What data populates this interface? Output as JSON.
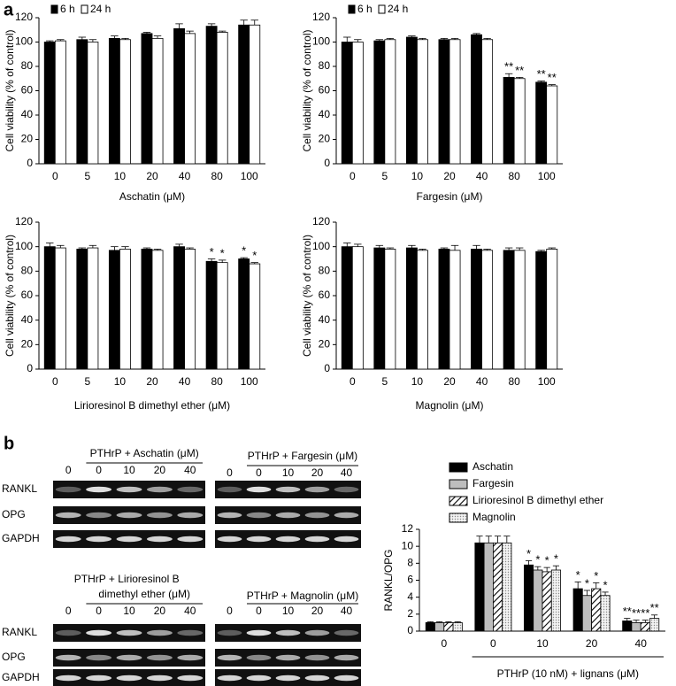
{
  "panels": [
    "a",
    "b"
  ],
  "chart_data": [
    {
      "type": "bar",
      "ylabel": "Cell viability (% of control)",
      "xlabel": "Aschatin (μM)",
      "categories": [
        "0",
        "5",
        "10",
        "20",
        "40",
        "80",
        "100"
      ],
      "ylim": [
        0,
        120
      ],
      "yticks": [
        0,
        20,
        40,
        60,
        80,
        100,
        120
      ],
      "legend": "upper left",
      "series": [
        {
          "name": "6 h",
          "color": "#000000",
          "values": [
            100,
            102,
            103,
            107,
            111,
            113,
            114
          ],
          "errors": [
            1,
            2,
            2,
            1,
            4,
            2,
            4
          ]
        },
        {
          "name": "24 h",
          "color": "#ffffff",
          "values": [
            101,
            100,
            102,
            103,
            107,
            108,
            114
          ],
          "errors": [
            1,
            2,
            1,
            2,
            2,
            1,
            4
          ]
        }
      ]
    },
    {
      "type": "bar",
      "ylabel": "Cell viability (% of control)",
      "xlabel": "Fargesin (μM)",
      "categories": [
        "0",
        "5",
        "10",
        "20",
        "40",
        "80",
        "100"
      ],
      "ylim": [
        0,
        120
      ],
      "yticks": [
        0,
        20,
        40,
        60,
        80,
        100,
        120
      ],
      "legend": "upper left",
      "series": [
        {
          "name": "6 h",
          "color": "#000000",
          "values": [
            100,
            101,
            104,
            102,
            106,
            71,
            67
          ],
          "errors": [
            4,
            1,
            1,
            1,
            1,
            3,
            1
          ],
          "stars": [
            null,
            null,
            null,
            null,
            null,
            "**",
            "**"
          ]
        },
        {
          "name": "24 h",
          "color": "#ffffff",
          "values": [
            100,
            102,
            102,
            102,
            102,
            70,
            64
          ],
          "errors": [
            2,
            1,
            1,
            1,
            1,
            1,
            1
          ],
          "stars": [
            null,
            null,
            null,
            null,
            null,
            "**",
            "**"
          ]
        }
      ]
    },
    {
      "type": "bar",
      "ylabel": "Cell viability (% of control)",
      "xlabel": "Lirioresinol B dimethyl ether (μM)",
      "categories": [
        "0",
        "5",
        "10",
        "20",
        "40",
        "80",
        "100"
      ],
      "ylim": [
        0,
        120
      ],
      "yticks": [
        0,
        20,
        40,
        60,
        80,
        100,
        120
      ],
      "series": [
        {
          "color": "#000000",
          "values": [
            100,
            98,
            97,
            98,
            100,
            88,
            90
          ],
          "errors": [
            3,
            1,
            3,
            1,
            2,
            2,
            1
          ],
          "stars": [
            null,
            null,
            null,
            null,
            null,
            "*",
            "*"
          ]
        },
        {
          "color": "#ffffff",
          "values": [
            99,
            99,
            98,
            97,
            98,
            87,
            86
          ],
          "errors": [
            2,
            2,
            2,
            1,
            1,
            2,
            1
          ],
          "stars": [
            null,
            null,
            null,
            null,
            null,
            "*",
            "*"
          ]
        }
      ]
    },
    {
      "type": "bar",
      "ylabel": "Cell viability (% of control)",
      "xlabel": "Magnolin (μM)",
      "categories": [
        "0",
        "5",
        "10",
        "20",
        "40",
        "80",
        "100"
      ],
      "ylim": [
        0,
        120
      ],
      "yticks": [
        0,
        20,
        40,
        60,
        80,
        100,
        120
      ],
      "series": [
        {
          "color": "#000000",
          "values": [
            100,
            99,
            99,
            98,
            98,
            97,
            96
          ],
          "errors": [
            3,
            2,
            2,
            1,
            3,
            2,
            1
          ],
          "stars": []
        },
        {
          "color": "#ffffff",
          "values": [
            100,
            98,
            97,
            97,
            97,
            97,
            98
          ],
          "errors": [
            2,
            1,
            1,
            4,
            1,
            2,
            1
          ],
          "stars": []
        }
      ]
    },
    {
      "type": "bar",
      "ylabel": "RANKL/OPG",
      "xlabel": "PTHrP (10 nM) + lignans (μM)",
      "categories": [
        "0",
        "0",
        "10",
        "20",
        "40"
      ],
      "ylim": [
        0,
        12
      ],
      "yticks": [
        0,
        2,
        4,
        6,
        8,
        10,
        12
      ],
      "legend": "upper right",
      "series": [
        {
          "name": "Aschatin",
          "color": "#000000",
          "values": [
            1,
            10.4,
            7.8,
            5.0,
            1.2
          ],
          "errors": [
            0.1,
            0.8,
            0.5,
            0.8,
            0.3
          ],
          "stars": [
            null,
            null,
            "*",
            "*",
            "**"
          ]
        },
        {
          "name": "Fargesin",
          "color": "#bdbdbd",
          "values": [
            1,
            10.4,
            7.2,
            4.2,
            1.0
          ],
          "errors": [
            0.1,
            0.8,
            0.4,
            0.6,
            0.3
          ],
          "stars": [
            null,
            null,
            "*",
            "*",
            "**"
          ]
        },
        {
          "name": "Lirioresinol B dimethyl ether",
          "color": "#000000",
          "pattern": "hatch",
          "values": [
            1,
            10.4,
            7.0,
            5.0,
            1.0
          ],
          "errors": [
            0.1,
            0.8,
            0.5,
            0.7,
            0.3
          ],
          "stars": [
            null,
            null,
            "*",
            "*",
            "**"
          ]
        },
        {
          "name": "Magnolin",
          "color": "#d9d9d9",
          "pattern": "dots",
          "values": [
            1,
            10.4,
            7.2,
            4.2,
            1.5
          ],
          "errors": [
            0.1,
            0.8,
            0.5,
            0.4,
            0.4
          ],
          "stars": [
            null,
            null,
            "*",
            "*",
            "**"
          ]
        }
      ]
    }
  ],
  "gels": [
    {
      "title": [
        "PTHrP + Aschatin (μM)"
      ],
      "lanes": [
        "0",
        "0",
        "10",
        "20",
        "40"
      ],
      "rows": [
        "RANKL",
        "OPG",
        "GAPDH"
      ]
    },
    {
      "title": [
        "PTHrP + Fargesin (μM)"
      ],
      "lanes": [
        "0",
        "0",
        "10",
        "20",
        "40"
      ]
    },
    {
      "title": [
        "PTHrP + Lirioresinol B",
        "dimethyl ether (μM)"
      ],
      "lanes": [
        "0",
        "0",
        "10",
        "20",
        "40"
      ],
      "rows": [
        "RANKL",
        "OPG",
        "GAPDH"
      ]
    },
    {
      "title": [
        "PTHrP + Magnolin (μM)"
      ],
      "lanes": [
        "0",
        "0",
        "10",
        "20",
        "40"
      ]
    }
  ]
}
